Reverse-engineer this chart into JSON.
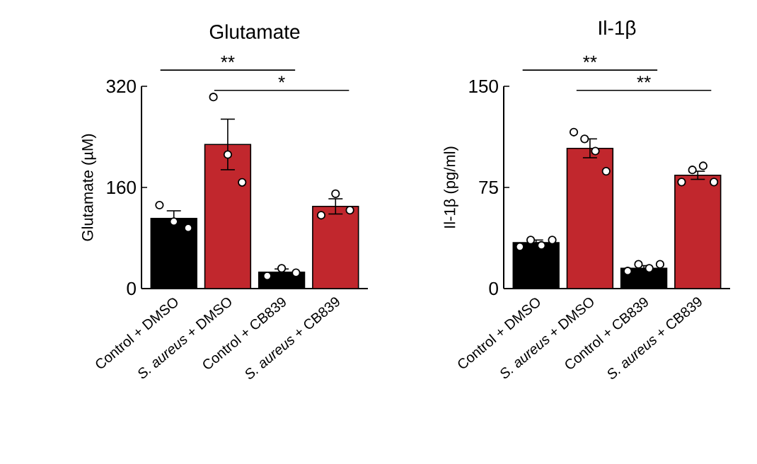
{
  "chart_data": [
    {
      "type": "bar",
      "title": "Glutamate",
      "ylabel": "Glutamate (µM)",
      "categories": [
        "Control + DMSO",
        "*S. aureus* + DMSO",
        "Control + CB839",
        "*S. aureus* + CB839"
      ],
      "ylim": [
        0,
        320
      ],
      "yticks": [
        0,
        160,
        320
      ],
      "annotations": [
        "**",
        "*"
      ],
      "series": [
        {
          "type": "bar",
          "colors": [
            "#000000",
            "#c1272d",
            "#000000",
            "#c1272d"
          ],
          "values": [
            111,
            228,
            26,
            130
          ],
          "errors": [
            12,
            40,
            5,
            12
          ]
        },
        {
          "type": "scatter",
          "color": "#ffffff",
          "marker": "circle",
          "x": [
            "Control + DMSO",
            "Control + DMSO",
            "Control + DMSO",
            "*S. aureus* + DMSO",
            "*S. aureus* + DMSO",
            "*S. aureus* + DMSO",
            "Control + CB839",
            "Control + CB839",
            "Control + CB839",
            "*S. aureus* + CB839",
            "*S. aureus* + CB839",
            "*S. aureus* + CB839"
          ],
          "values": [
            132,
            106,
            96,
            303,
            212,
            168,
            20,
            32,
            25,
            116,
            150,
            124
          ]
        }
      ]
    },
    {
      "type": "bar",
      "title": "Il-1β",
      "ylabel": "Il-1β (pg/ml)",
      "categories": [
        "Control + DMSO",
        "*S. aureus* + DMSO",
        "Control + CB839",
        "*S. aureus* + CB839"
      ],
      "ylim": [
        0,
        150
      ],
      "yticks": [
        0,
        75,
        150
      ],
      "annotations": [
        "**",
        "**"
      ],
      "series": [
        {
          "type": "bar",
          "colors": [
            "#000000",
            "#c1272d",
            "#000000",
            "#c1272d"
          ],
          "values": [
            34,
            104,
            15,
            84
          ],
          "errors": [
            2,
            7,
            2,
            3
          ]
        },
        {
          "type": "scatter",
          "color": "#ffffff",
          "marker": "circle",
          "x": [
            "Control + DMSO",
            "Control + DMSO",
            "Control + DMSO",
            "Control + DMSO",
            "*S. aureus* + DMSO",
            "*S. aureus* + DMSO",
            "*S. aureus* + DMSO",
            "*S. aureus* + DMSO",
            "Control + CB839",
            "Control + CB839",
            "Control + CB839",
            "Control + CB839",
            "*S. aureus* + CB839",
            "*S. aureus* + CB839",
            "*S. aureus* + CB839",
            "*S. aureus* + CB839"
          ],
          "values": [
            31,
            36,
            32,
            36,
            116,
            111,
            102,
            87,
            13,
            18,
            15,
            18,
            79,
            88,
            91,
            79
          ]
        }
      ]
    }
  ]
}
